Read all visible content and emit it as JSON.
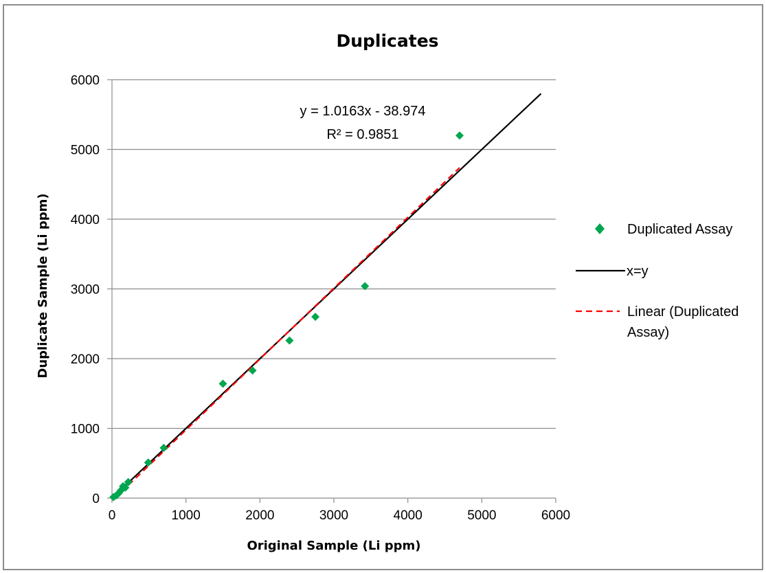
{
  "chart_data": {
    "type": "scatter",
    "title": "Duplicates",
    "xlabel": "Original Sample (Li ppm)",
    "ylabel": "Duplicate Sample (Li ppm)",
    "xlim": [
      0,
      6000
    ],
    "ylim": [
      0,
      6000
    ],
    "xticks": [
      0,
      1000,
      2000,
      3000,
      4000,
      5000,
      6000
    ],
    "yticks": [
      0,
      1000,
      2000,
      3000,
      4000,
      5000,
      6000
    ],
    "grid": "horizontal",
    "legend_position": "right",
    "series": [
      {
        "name": "Duplicated Assay",
        "kind": "scatter",
        "color": "#00a650",
        "marker": "diamond",
        "points": [
          [
            20,
            15
          ],
          [
            60,
            40
          ],
          [
            90,
            70
          ],
          [
            120,
            110
          ],
          [
            150,
            170
          ],
          [
            180,
            150
          ],
          [
            220,
            230
          ],
          [
            490,
            510
          ],
          [
            700,
            720
          ],
          [
            1500,
            1640
          ],
          [
            1900,
            1830
          ],
          [
            2400,
            2260
          ],
          [
            2750,
            2600
          ],
          [
            3420,
            3040
          ],
          [
            4700,
            5200
          ]
        ]
      },
      {
        "name": "x=y",
        "kind": "line",
        "color": "#000000",
        "dash": "solid",
        "points": [
          [
            0,
            0
          ],
          [
            5800,
            5800
          ]
        ]
      },
      {
        "name": "Linear (Duplicated Assay)",
        "kind": "line",
        "color": "#ff0000",
        "dash": "dashed",
        "points": [
          [
            20,
            -18.6
          ],
          [
            4700,
            4737.6
          ]
        ]
      }
    ],
    "annotations": [
      {
        "text": "y = 1.0163x - 38.974"
      },
      {
        "text": "R² = 0.9851"
      }
    ],
    "legend": [
      {
        "label": "Duplicated Assay"
      },
      {
        "label": "x=y"
      },
      {
        "label_lines": [
          "Linear (Duplicated",
          "Assay)"
        ]
      }
    ]
  }
}
